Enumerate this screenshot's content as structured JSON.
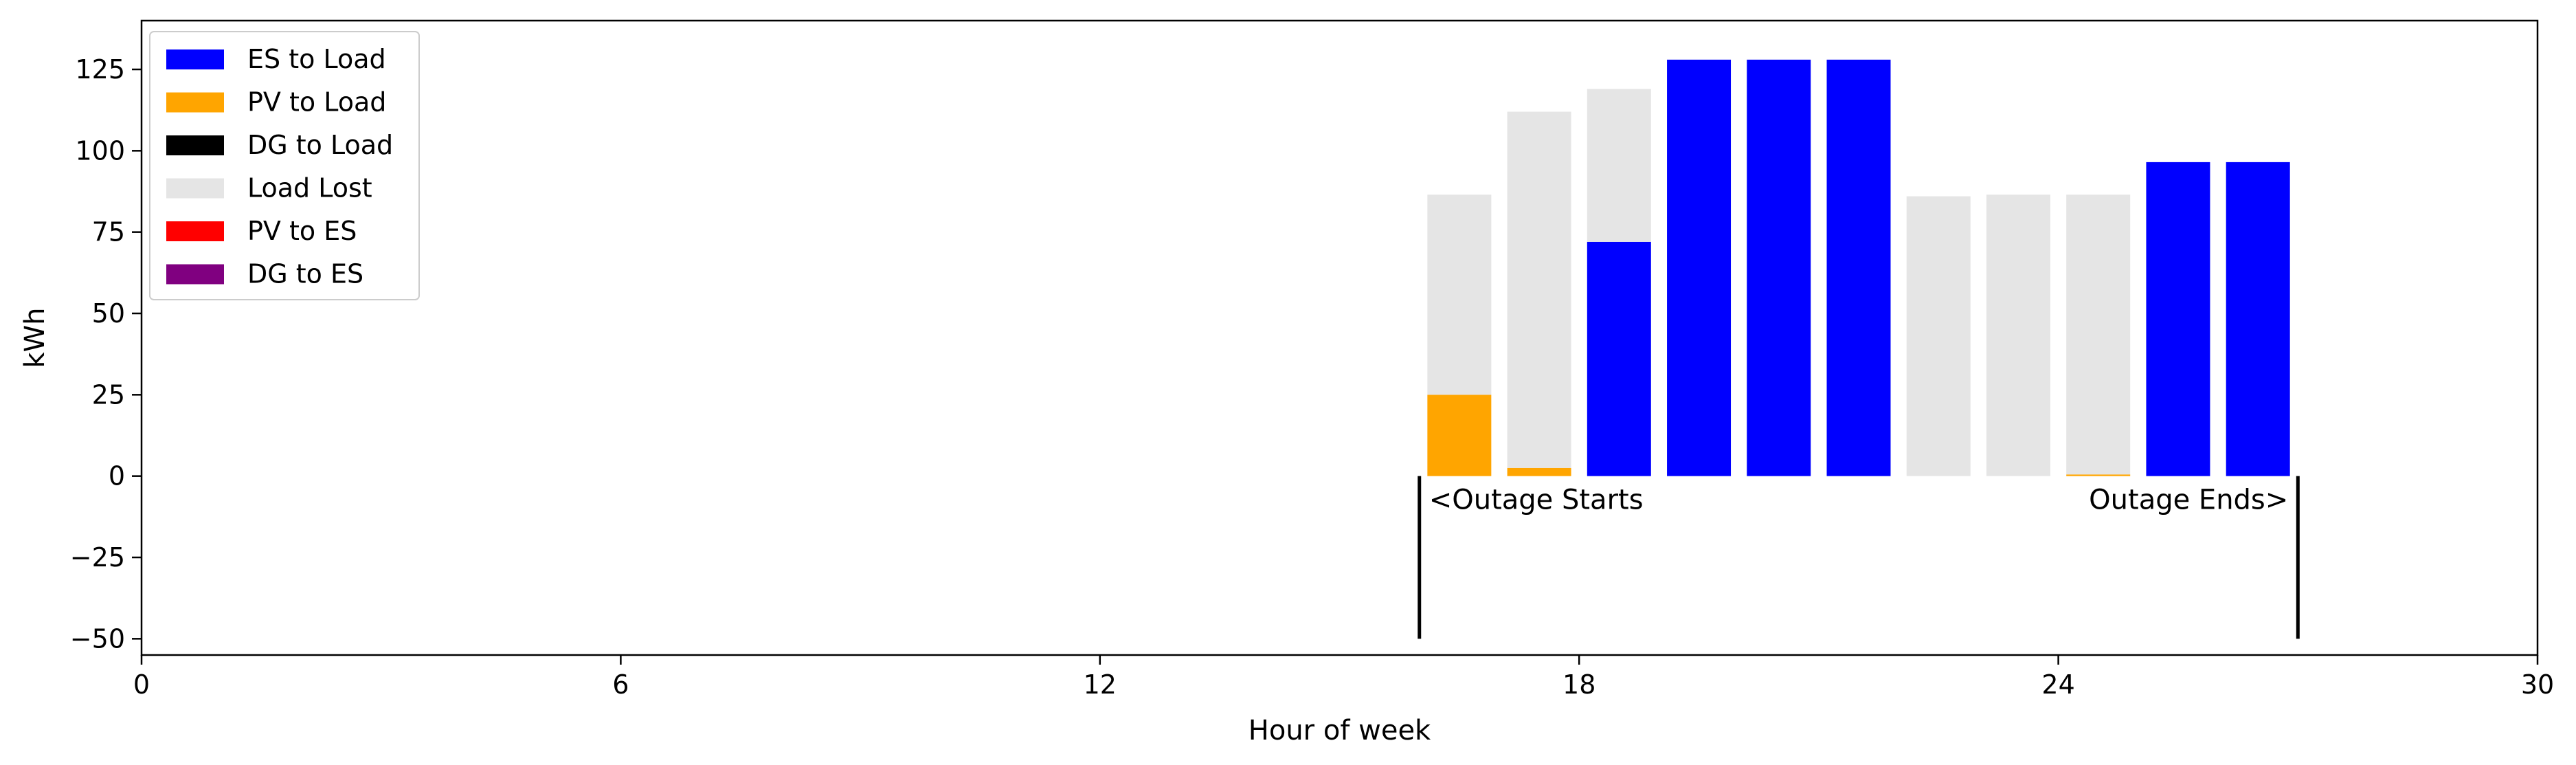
{
  "chart_data": {
    "type": "bar",
    "stacked": true,
    "xlabel": "Hour of week",
    "ylabel": "kWh",
    "xlim": [
      0,
      30
    ],
    "ylim": [
      -55,
      140
    ],
    "xticks": [
      0,
      6,
      12,
      18,
      24,
      30
    ],
    "yticks": [
      -50,
      -25,
      0,
      25,
      50,
      75,
      100,
      125
    ],
    "ytick_labels": [
      "−50",
      "−25",
      "0",
      "25",
      "50",
      "75",
      "100",
      "125"
    ],
    "grid": false,
    "legend_position": "top-left",
    "x": [
      16.5,
      17.5,
      18.5,
      19.5,
      20.5,
      21.5,
      22.5,
      23.5,
      24.5,
      25.5,
      26.5
    ],
    "series": [
      {
        "name": "ES to Load",
        "color": "#0000ff",
        "values": [
          0,
          0,
          72,
          128,
          128,
          128,
          0,
          0,
          0,
          96.5,
          96.5
        ]
      },
      {
        "name": "PV to Load",
        "color": "#ffa500",
        "values": [
          25,
          2.5,
          0,
          0,
          0,
          0,
          0,
          0,
          0.5,
          0,
          0
        ]
      },
      {
        "name": "DG to Load",
        "color": "#000000",
        "values": [
          0,
          0,
          0,
          0,
          0,
          0,
          0,
          0,
          0,
          0,
          0
        ]
      },
      {
        "name": "Load Lost",
        "color": "#e5e5e5",
        "values": [
          61.5,
          109.5,
          47,
          0,
          0,
          0,
          86,
          86.5,
          86,
          0,
          0
        ]
      },
      {
        "name": "PV to ES",
        "color": "#ff0000",
        "values": [
          0,
          0,
          0,
          0,
          0,
          0,
          0,
          0,
          0,
          0,
          0
        ]
      },
      {
        "name": "DG to ES",
        "color": "#800080",
        "values": [
          0,
          0,
          0,
          0,
          0,
          0,
          0,
          0,
          0,
          0,
          0
        ]
      }
    ],
    "annotations": [
      {
        "text": "<Outage Starts",
        "x": 16,
        "anchor": "start"
      },
      {
        "text": "Outage Ends>",
        "x": 27,
        "anchor": "end"
      }
    ],
    "outage_lines": [
      {
        "x": 16,
        "y_from": -50,
        "y_to": 0
      },
      {
        "x": 27,
        "y_from": -50,
        "y_to": 0
      }
    ]
  }
}
